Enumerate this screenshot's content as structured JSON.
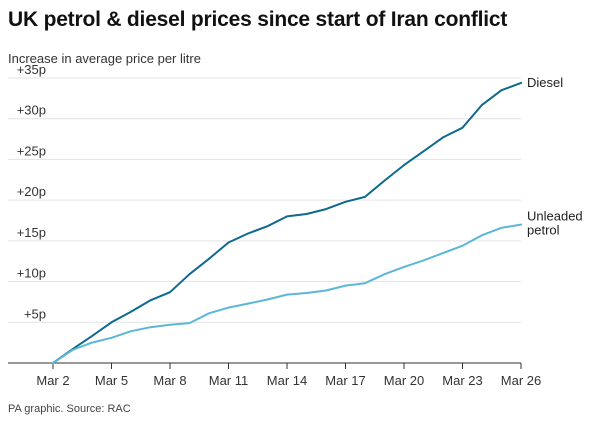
{
  "header": {
    "title": "UK petrol & diesel prices since start of Iran conflict",
    "subtitle": "Increase in average price per litre"
  },
  "footer": {
    "source": "PA graphic. Source: RAC"
  },
  "colors": {
    "diesel": "#0e6a8c",
    "petrol": "#5bb7d8",
    "grid": "#e3e3e3",
    "axis": "#333333"
  },
  "chart_data": {
    "type": "line",
    "title": "UK petrol & diesel prices since start of Iran conflict",
    "ylabel": "Increase in average price per litre",
    "xlabel": "",
    "x": [
      "Mar 2",
      "Mar 3",
      "Mar 4",
      "Mar 5",
      "Mar 6",
      "Mar 7",
      "Mar 8",
      "Mar 9",
      "Mar 10",
      "Mar 11",
      "Mar 12",
      "Mar 13",
      "Mar 14",
      "Mar 15",
      "Mar 16",
      "Mar 17",
      "Mar 18",
      "Mar 19",
      "Mar 20",
      "Mar 21",
      "Mar 22",
      "Mar 23",
      "Mar 24",
      "Mar 25",
      "Mar 26"
    ],
    "x_ticks": [
      "Mar 2",
      "Mar 5",
      "Mar 8",
      "Mar 11",
      "Mar 14",
      "Mar 17",
      "Mar 20",
      "Mar 23",
      "Mar 26"
    ],
    "y_ticks": [
      {
        "value": 5,
        "label": "+5p"
      },
      {
        "value": 10,
        "label": "+10p"
      },
      {
        "value": 15,
        "label": "+15p"
      },
      {
        "value": 20,
        "label": "+20p"
      },
      {
        "value": 25,
        "label": "+25p"
      },
      {
        "value": 30,
        "label": "+30p"
      },
      {
        "value": 35,
        "label": "+35p"
      }
    ],
    "ylim": [
      0,
      35
    ],
    "grid": true,
    "series": [
      {
        "name": "Diesel",
        "values": [
          0,
          1.7,
          3.3,
          5.0,
          6.3,
          7.7,
          8.7,
          10.9,
          12.8,
          14.8,
          15.9,
          16.8,
          18.0,
          18.3,
          18.9,
          19.8,
          20.4,
          22.4,
          24.3,
          26.0,
          27.7,
          28.9,
          31.7,
          33.5,
          34.4
        ]
      },
      {
        "name": "Unleaded petrol",
        "label_lines": [
          "Unleaded",
          "petrol"
        ],
        "values": [
          0,
          1.6,
          2.5,
          3.1,
          3.9,
          4.4,
          4.7,
          4.9,
          6.1,
          6.8,
          7.3,
          7.8,
          8.4,
          8.6,
          8.9,
          9.5,
          9.8,
          10.9,
          11.8,
          12.6,
          13.5,
          14.4,
          15.7,
          16.6,
          17.0
        ]
      }
    ]
  }
}
